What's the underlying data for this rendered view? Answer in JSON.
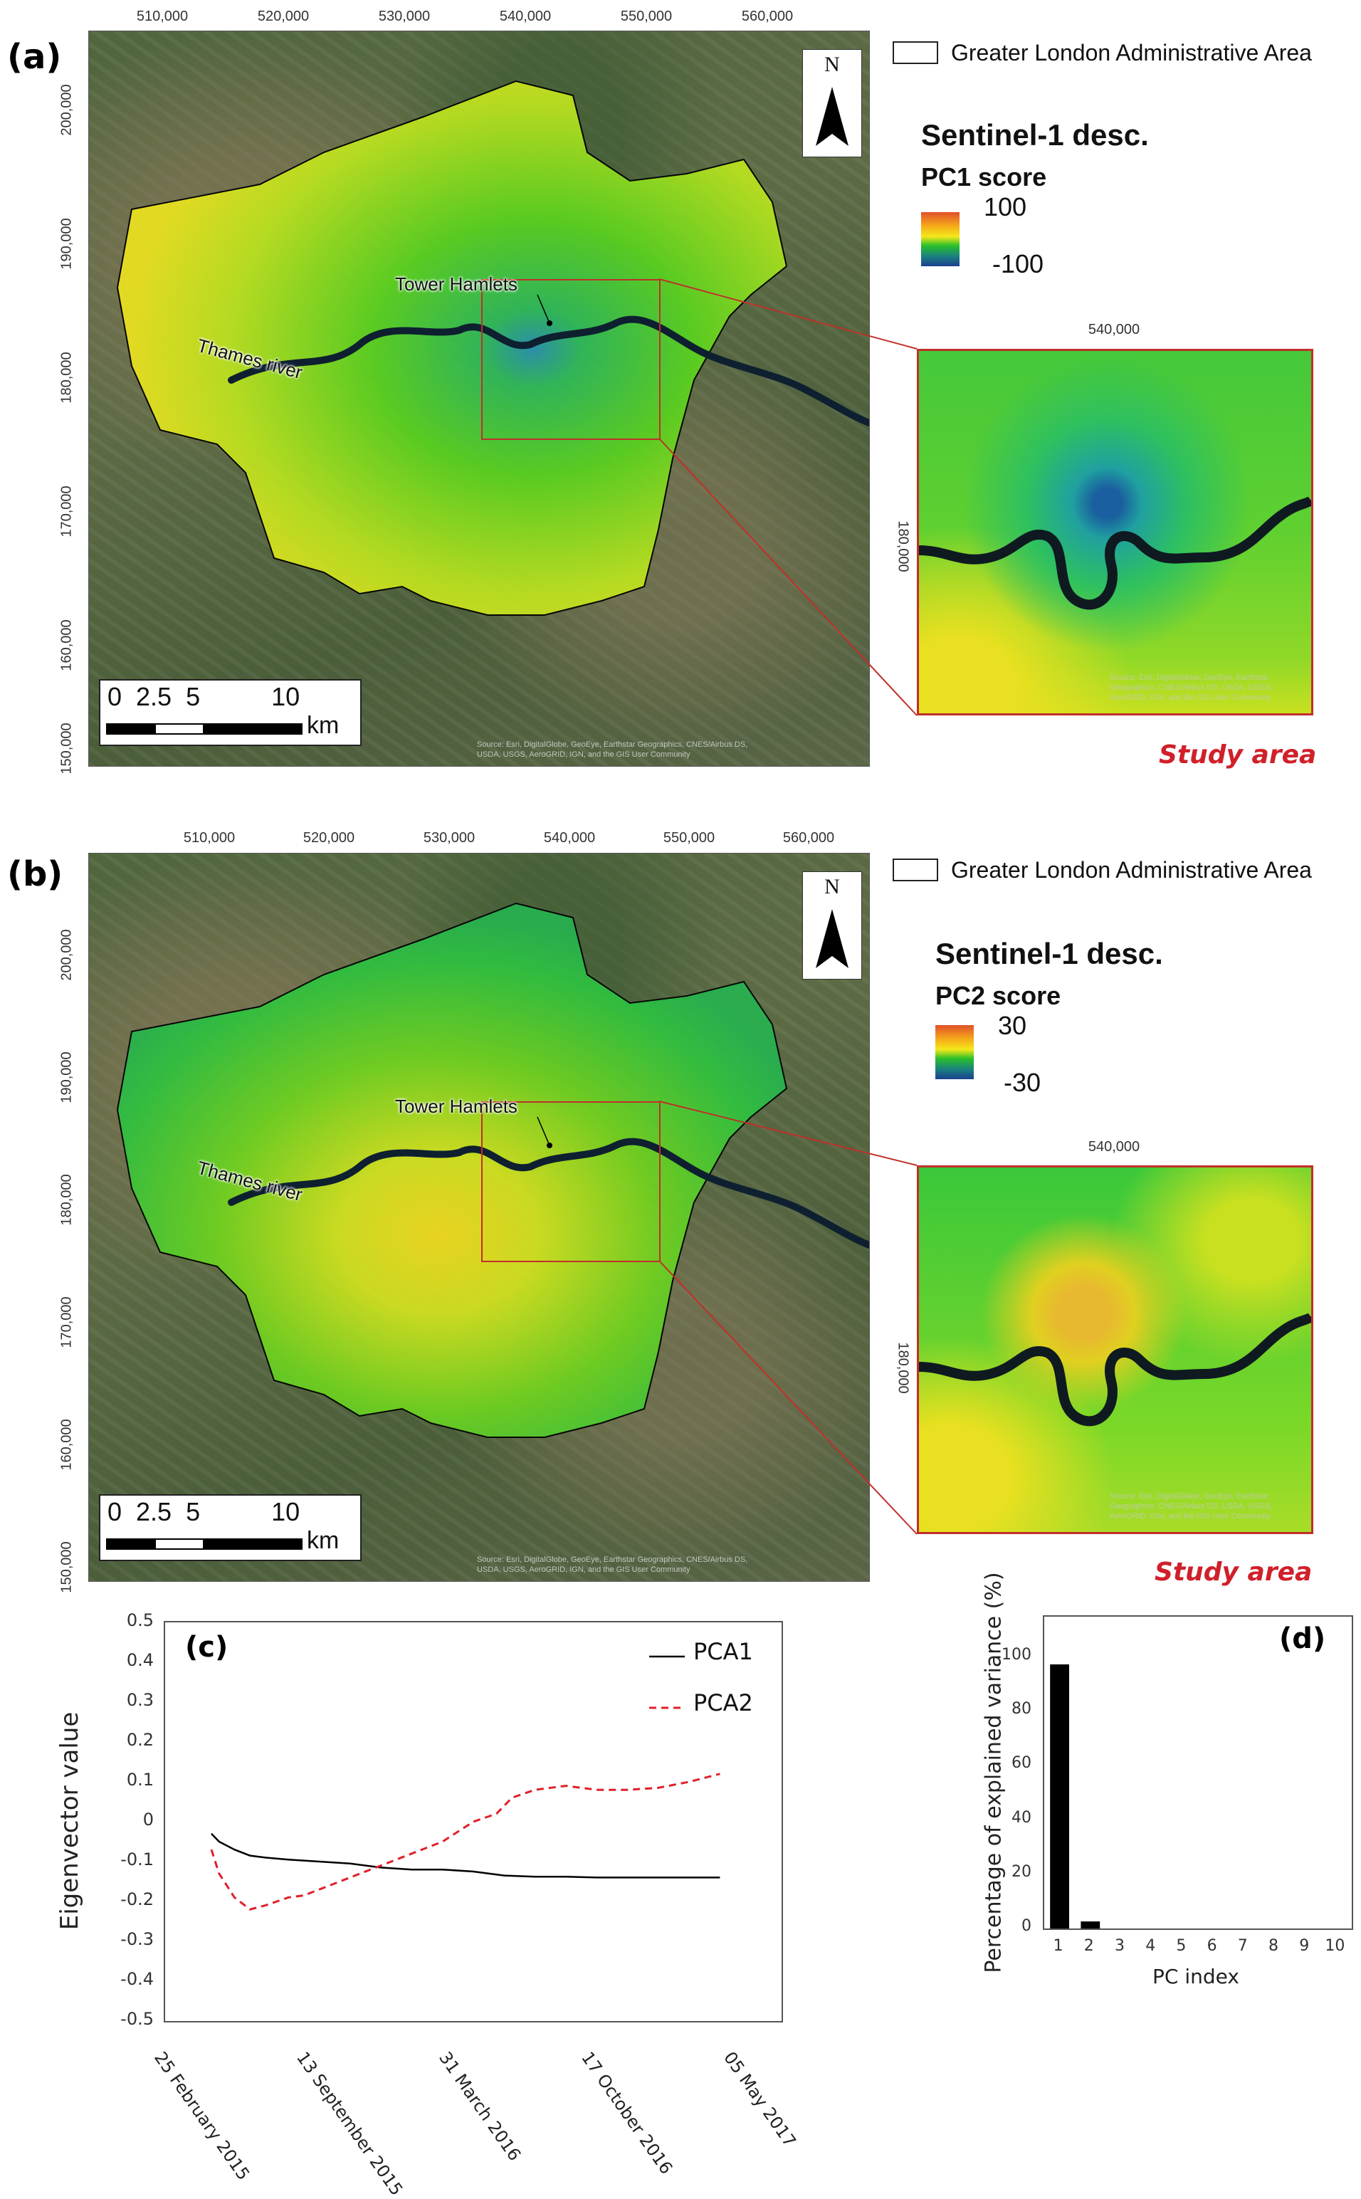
{
  "panels": {
    "a": {
      "label": "(a)",
      "legend_boundary": "Greater London Administrative Area",
      "legend_title": "Sentinel-1 desc.",
      "legend_subtitle": "PC1 score",
      "ramp_max": "100",
      "ramp_min": "-100",
      "tower_hamlets": "Tower Hamlets",
      "thames": "Thames river",
      "inset_caption": "Study area"
    },
    "b": {
      "label": "(b)",
      "legend_boundary": "Greater London Administrative Area",
      "legend_title": "Sentinel-1 desc.",
      "legend_subtitle": "PC2 score",
      "ramp_max": "30",
      "ramp_min": "-30",
      "tower_hamlets": "Tower Hamlets",
      "thames": "Thames river",
      "inset_caption": "Study area"
    }
  },
  "map_common": {
    "x_ticks": [
      "510,000",
      "520,000",
      "530,000",
      "540,000",
      "550,000",
      "560,000"
    ],
    "y_ticks": [
      "200,000",
      "190,000",
      "180,000",
      "170,000",
      "160,000",
      "150,000"
    ],
    "inset_x_tick": "540,000",
    "inset_y_tick": "180,000",
    "north": "N",
    "scalebar_numbers": "0  2.5  5          10",
    "scalebar_unit": "km",
    "attribution_line1": "Source: Esri, DigitalGlobe, GeoEye, Earthstar Geographics, CNES/Airbus DS,",
    "attribution_line2": "USDA, USGS, AeroGRID, IGN, and the GIS User Community",
    "inset_attribution": "Source: Esri, DigitalGlobe, GeoEye, Earthstar Geographics, CNES/Airbus DS, USDA, USGS, AeroGRID, IGN, and the GIS User Community",
    "colors": {
      "ramp_top": "#e0502a",
      "ramp_yellow": "#f5e81a",
      "ramp_green": "#2ac02a",
      "ramp_bottom": "#1a3f8f",
      "inset_border": "#c0302a",
      "study_area": "#d0202a"
    }
  },
  "chart_data": [
    {
      "panel": "(c)",
      "type": "line",
      "title": "",
      "xlabel": "",
      "ylabel": "Eigenvector value",
      "ylim": [
        -0.5,
        0.5
      ],
      "y_ticks": [
        "0.5",
        "0.4",
        "0.3",
        "0.2",
        "0.1",
        "0",
        "-0.1",
        "-0.2",
        "-0.3",
        "-0.4",
        "-0.5"
      ],
      "x_tick_labels": [
        "25 February 2015",
        "13 September 2015",
        "31 March 2016",
        "17 October 2016",
        "05 May 2017"
      ],
      "x_range_days": [
        0,
        800
      ],
      "grid": false,
      "legend_position": "top-right",
      "series": [
        {
          "name": "PCA1",
          "style": "solid",
          "color": "#000000",
          "x_days": [
            60,
            70,
            90,
            110,
            130,
            160,
            200,
            240,
            280,
            320,
            360,
            400,
            440,
            480,
            520,
            560,
            600,
            640,
            680,
            720
          ],
          "values": [
            -0.03,
            -0.05,
            -0.07,
            -0.085,
            -0.09,
            -0.095,
            -0.1,
            -0.105,
            -0.115,
            -0.12,
            -0.12,
            -0.125,
            -0.135,
            -0.138,
            -0.138,
            -0.14,
            -0.14,
            -0.14,
            -0.14,
            -0.14
          ]
        },
        {
          "name": "PCA2",
          "style": "dashed",
          "color": "#e0202a",
          "x_days": [
            60,
            70,
            90,
            110,
            130,
            160,
            180,
            200,
            240,
            280,
            320,
            360,
            400,
            430,
            450,
            480,
            520,
            560,
            600,
            640,
            680,
            720
          ],
          "values": [
            -0.07,
            -0.13,
            -0.19,
            -0.22,
            -0.21,
            -0.19,
            -0.185,
            -0.17,
            -0.14,
            -0.11,
            -0.08,
            -0.05,
            0.0,
            0.02,
            0.06,
            0.08,
            0.09,
            0.08,
            0.08,
            0.085,
            0.1,
            0.12
          ]
        }
      ]
    },
    {
      "panel": "(d)",
      "type": "bar",
      "title": "",
      "xlabel": "PC index",
      "ylabel": "Percentage of explained variance (%)",
      "ylim": [
        0,
        115
      ],
      "y_ticks": [
        "100",
        "80",
        "60",
        "40",
        "20",
        "0"
      ],
      "categories": [
        "1",
        "2",
        "3",
        "4",
        "5",
        "6",
        "7",
        "8",
        "9",
        "10"
      ],
      "values": [
        97.4,
        2.6,
        0,
        0,
        0,
        0,
        0,
        0,
        0,
        0
      ],
      "grid": false
    }
  ]
}
